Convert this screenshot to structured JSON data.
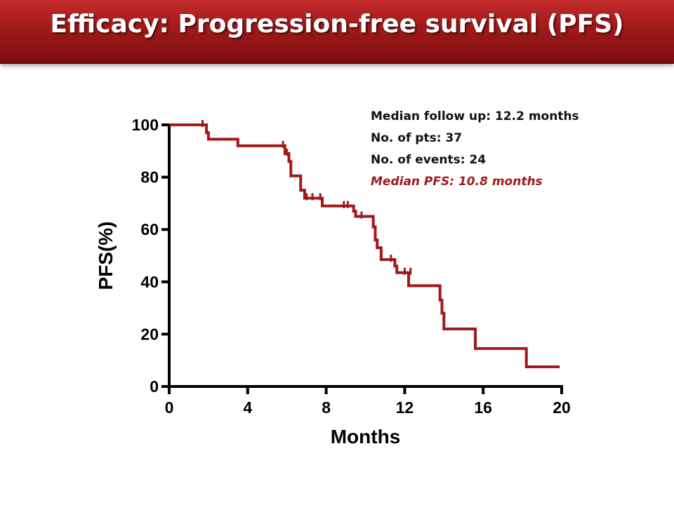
{
  "header": {
    "title": "Efficacy: Progression-free survival (PFS)"
  },
  "info": {
    "follow_up": "Median follow up: 12.2 months",
    "pts": "No. of pts: 37",
    "events": "No. of events: 24",
    "median_pfs": "Median PFS: 10.8 months"
  },
  "colors": {
    "banner": "#a11a1a",
    "curve": "#a11a1a",
    "median_text": "#a11a1a"
  },
  "chart_data": {
    "type": "line",
    "step": true,
    "xlabel": "Months",
    "ylabel": "PFS(%)",
    "xlim": [
      0,
      20
    ],
    "ylim": [
      0,
      100
    ],
    "xticks": [
      "0",
      "4",
      "8",
      "12",
      "16",
      "20"
    ],
    "yticks": [
      "0",
      "20",
      "40",
      "60",
      "80",
      "100"
    ],
    "series": [
      {
        "x": [
          0,
          1.8,
          1.9,
          2.0,
          3.5,
          5.9,
          6.1,
          6.2,
          6.7,
          6.9,
          7.8,
          9.4,
          9.5,
          10.4,
          10.5,
          10.6,
          10.8,
          11.5,
          11.6,
          12.2,
          13.8,
          13.9,
          14.0,
          15.6,
          18.2,
          19.9
        ],
        "y": [
          100,
          100,
          97,
          94.5,
          92,
          89,
          86,
          80.5,
          75,
          72,
          69,
          67,
          65,
          61,
          56,
          53,
          48.5,
          46,
          43.5,
          38.5,
          33,
          28,
          22,
          14.5,
          7.5,
          7.5
        ]
      }
    ],
    "censor": [
      {
        "x": 1.7,
        "y": 100
      },
      {
        "x": 5.8,
        "y": 92
      },
      {
        "x": 6.0,
        "y": 89
      },
      {
        "x": 7.0,
        "y": 72
      },
      {
        "x": 7.3,
        "y": 72
      },
      {
        "x": 7.7,
        "y": 72
      },
      {
        "x": 8.9,
        "y": 69
      },
      {
        "x": 9.1,
        "y": 69
      },
      {
        "x": 9.8,
        "y": 65
      },
      {
        "x": 11.3,
        "y": 48.5
      },
      {
        "x": 12.0,
        "y": 43.5
      },
      {
        "x": 12.3,
        "y": 43.5
      }
    ]
  }
}
